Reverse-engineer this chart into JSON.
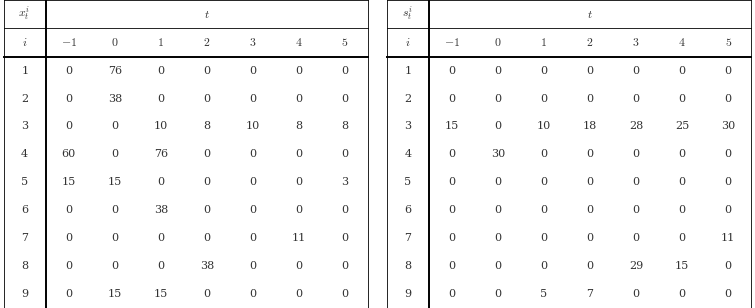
{
  "x_table": {
    "header_var": "$x_t^i$",
    "col_headers": [
      "$i$",
      "$-1$",
      "$0$",
      "$1$",
      "$2$",
      "$3$",
      "$4$",
      "$5$"
    ],
    "rows": [
      [
        "1",
        "0",
        "76",
        "0",
        "0",
        "0",
        "0",
        "0"
      ],
      [
        "2",
        "0",
        "38",
        "0",
        "0",
        "0",
        "0",
        "0"
      ],
      [
        "3",
        "0",
        "0",
        "10",
        "8",
        "10",
        "8",
        "8"
      ],
      [
        "4",
        "60",
        "0",
        "76",
        "0",
        "0",
        "0",
        "0"
      ],
      [
        "5",
        "15",
        "15",
        "0",
        "0",
        "0",
        "0",
        "3"
      ],
      [
        "6",
        "0",
        "0",
        "38",
        "0",
        "0",
        "0",
        "0"
      ],
      [
        "7",
        "0",
        "0",
        "0",
        "0",
        "0",
        "11",
        "0"
      ],
      [
        "8",
        "0",
        "0",
        "0",
        "38",
        "0",
        "0",
        "0"
      ],
      [
        "9",
        "0",
        "15",
        "15",
        "0",
        "0",
        "0",
        "0"
      ]
    ]
  },
  "s_table": {
    "header_var": "$s_t^i$",
    "col_headers": [
      "$i$",
      "$-1$",
      "$0$",
      "$1$",
      "$2$",
      "$3$",
      "$4$",
      "$5$"
    ],
    "rows": [
      [
        "1",
        "0",
        "0",
        "0",
        "0",
        "0",
        "0",
        "0"
      ],
      [
        "2",
        "0",
        "0",
        "0",
        "0",
        "0",
        "0",
        "0"
      ],
      [
        "3",
        "15",
        "0",
        "10",
        "18",
        "28",
        "25",
        "30"
      ],
      [
        "4",
        "0",
        "30",
        "0",
        "0",
        "0",
        "0",
        "0"
      ],
      [
        "5",
        "0",
        "0",
        "0",
        "0",
        "0",
        "0",
        "0"
      ],
      [
        "6",
        "0",
        "0",
        "0",
        "0",
        "0",
        "0",
        "0"
      ],
      [
        "7",
        "0",
        "0",
        "0",
        "0",
        "0",
        "0",
        "11"
      ],
      [
        "8",
        "0",
        "0",
        "0",
        "0",
        "29",
        "15",
        "0"
      ],
      [
        "9",
        "0",
        "0",
        "5",
        "7",
        "0",
        "0",
        "0"
      ]
    ]
  },
  "bg_color": "#ffffff",
  "text_color": "#333333",
  "line_color": "#000000",
  "font_size": 8.0,
  "header_font_size": 8.5,
  "fig_width": 7.55,
  "fig_height": 3.08
}
